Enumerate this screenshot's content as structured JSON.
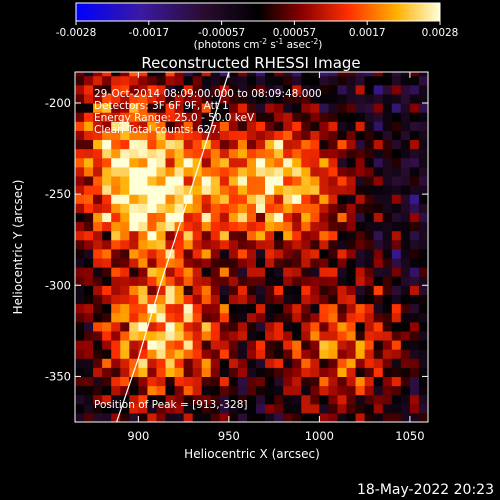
{
  "chart_data": {
    "type": "heatmap",
    "title": "Reconstructed RHESSI Image",
    "xlabel": "Heliocentric X (arcsec)",
    "ylabel": "Heliocentric Y (arcsec)",
    "xlim": [
      865,
      1060
    ],
    "ylim": [
      -375,
      -183
    ],
    "x_ticks": [
      900,
      950,
      1000,
      1050
    ],
    "y_ticks": [
      -200,
      -250,
      -300,
      -350
    ],
    "colorbar": {
      "ticks": [
        "-0.0028",
        "-0.0017",
        "-0.00057",
        "0.00057",
        "0.0017",
        "0.0028"
      ],
      "range": [
        -0.0028,
        0.0028
      ],
      "label_main": "(photons cm",
      "label_exp1": "-2",
      "label_mid": " s",
      "label_exp2": "-1",
      "label_mid2": " asec",
      "label_exp3": "-2",
      "label_end": ")"
    },
    "annotations": [
      "29-Oct-2014 08:09:00.000 to 08:09:48.000",
      "Detectors: 3F 6F 9F, Att 1",
      "Energy Range: 25.0 - 50.0 keV",
      "Clean    Total counts: 627."
    ],
    "peak_label": "Position of Peak = [913,-328]",
    "peak": [
      913,
      -328
    ],
    "limb_curve": [
      [
        888,
        -375
      ],
      [
        900,
        -340
      ],
      [
        912,
        -300
      ],
      [
        925,
        -260
      ],
      [
        938,
        -220
      ],
      [
        950,
        -183
      ]
    ],
    "sources": [
      {
        "x": 905,
        "y": -250,
        "strength": 1.0
      },
      {
        "x": 978,
        "y": -245,
        "strength": 0.9
      },
      {
        "x": 913,
        "y": -328,
        "strength": 0.85
      },
      {
        "x": 1012,
        "y": -335,
        "strength": 0.6
      },
      {
        "x": 890,
        "y": -200,
        "strength": 0.45
      }
    ]
  },
  "footer": {
    "date": "18-May-2022 20:23"
  }
}
